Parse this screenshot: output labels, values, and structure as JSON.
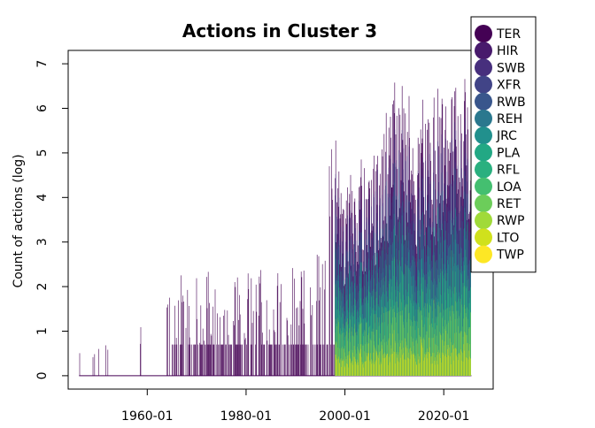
{
  "chart_data": {
    "type": "bar",
    "title": "Actions in Cluster 3",
    "xlabel": "",
    "ylabel": "Count of actions (log)",
    "xlim": [
      "1944-01",
      "2030-01"
    ],
    "ylim": [
      -0.3,
      7.3
    ],
    "yticks": [
      0,
      1,
      2,
      3,
      4,
      5,
      6,
      7
    ],
    "xticks": [
      "1960-01",
      "1980-01",
      "2000-01",
      "2020-01"
    ],
    "grid": false,
    "legend_position": "top-right",
    "legend": [
      {
        "label": "TER",
        "color": "#440154"
      },
      {
        "label": "HIR",
        "color": "#481a6c"
      },
      {
        "label": "SWB",
        "color": "#472f7d"
      },
      {
        "label": "XFR",
        "color": "#414487"
      },
      {
        "label": "RWB",
        "color": "#39568c"
      },
      {
        "label": "REH",
        "color": "#2a788e"
      },
      {
        "label": "JRC",
        "color": "#21908d"
      },
      {
        "label": "PLA",
        "color": "#22a884"
      },
      {
        "label": "RFL",
        "color": "#2ab07f"
      },
      {
        "label": "LOA",
        "color": "#44bf70"
      },
      {
        "label": "RET",
        "color": "#6ccd5a"
      },
      {
        "label": "RWP",
        "color": "#a0da39"
      },
      {
        "label": "LTO",
        "color": "#d0e11c"
      },
      {
        "label": "TWP",
        "color": "#fde725"
      }
    ],
    "series_envelope_max": [
      {
        "x": "1946-01",
        "y": 0.7
      },
      {
        "x": "1949-01",
        "y": 0.7
      },
      {
        "x": "1956-01",
        "y": 0.7
      },
      {
        "x": "1958-01",
        "y": 1.4
      },
      {
        "x": "1963-01",
        "y": 1.4
      },
      {
        "x": "1966-01",
        "y": 2.4
      },
      {
        "x": "1972-01",
        "y": 2.4
      },
      {
        "x": "1980-01",
        "y": 2.3
      },
      {
        "x": "1988-01",
        "y": 2.6
      },
      {
        "x": "1993-01",
        "y": 2.7
      },
      {
        "x": "1998-01",
        "y": 5.8
      },
      {
        "x": "2000-01",
        "y": 4.6
      },
      {
        "x": "2003-01",
        "y": 5.0
      },
      {
        "x": "2006-01",
        "y": 5.2
      },
      {
        "x": "2009-01",
        "y": 6.5
      },
      {
        "x": "2011-01",
        "y": 7.0
      },
      {
        "x": "2014-01",
        "y": 6.3
      },
      {
        "x": "2017-01",
        "y": 6.8
      },
      {
        "x": "2020-01",
        "y": 6.9
      },
      {
        "x": "2023-01",
        "y": 6.8
      }
    ]
  }
}
